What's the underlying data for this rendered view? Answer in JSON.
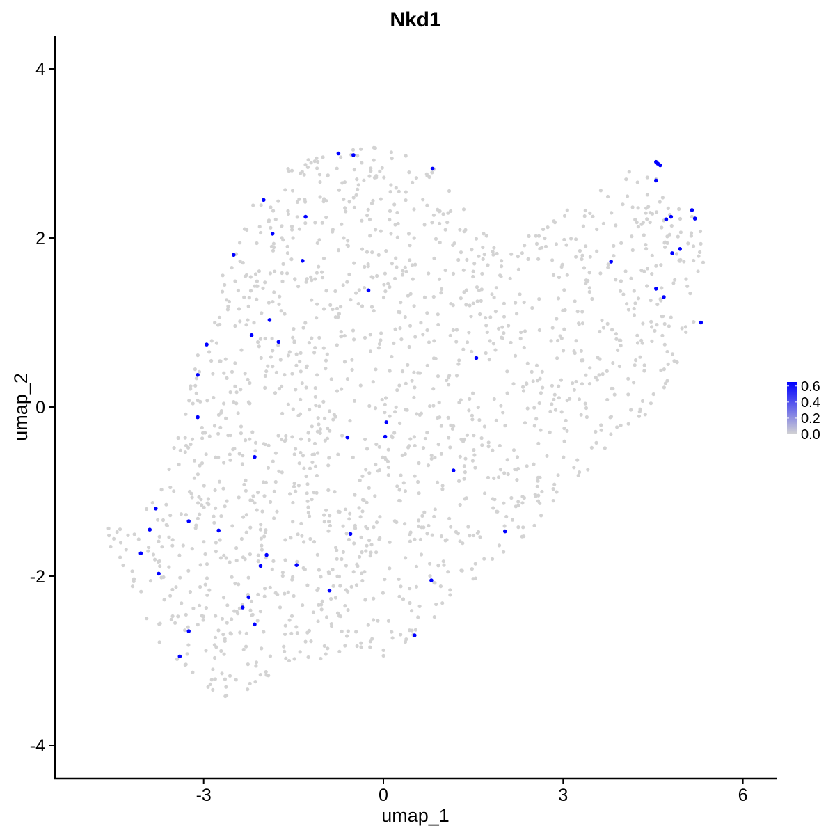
{
  "chart_data": {
    "type": "scatter",
    "title": "Nkd1",
    "xlabel": "umap_1",
    "ylabel": "umap_2",
    "xlim": [
      -5.5,
      6.5
    ],
    "ylim": [
      -4.3,
      4.4
    ],
    "x_ticks": [
      -3,
      0,
      3,
      6
    ],
    "x_tick_labels": [
      "-3",
      "0",
      "3",
      "6"
    ],
    "y_ticks": [
      -4,
      -2,
      0,
      2,
      4
    ],
    "y_tick_labels": [
      "-4",
      "-2",
      "0",
      "2",
      "4"
    ],
    "grid": false,
    "legend": {
      "placement": "right",
      "type": "colorbar",
      "min": 0.0,
      "max": 0.65,
      "ticks": [
        0.0,
        0.2,
        0.4,
        0.6
      ],
      "tick_labels": [
        "0.0",
        "0.2",
        "0.4",
        "0.6"
      ],
      "low_color": "#d3d3d3",
      "high_color": "#0000ff"
    },
    "background_color": "#d3d3d3",
    "expressed_color": "#0000ff",
    "background_region": {
      "description_points": [
        [
          -4.6,
          -1.25
        ],
        [
          -3.9,
          -1.2
        ],
        [
          -3.5,
          -0.4
        ],
        [
          -3.2,
          0.4
        ],
        [
          -2.9,
          1.2
        ],
        [
          -2.5,
          1.9
        ],
        [
          -2.1,
          2.5
        ],
        [
          -1.6,
          2.85
        ],
        [
          -0.9,
          3.05
        ],
        [
          -0.2,
          3.1
        ],
        [
          0.5,
          3.0
        ],
        [
          1.1,
          2.7
        ],
        [
          1.6,
          2.2
        ],
        [
          2.1,
          1.95
        ],
        [
          2.8,
          2.2
        ],
        [
          3.5,
          2.55
        ],
        [
          4.4,
          2.95
        ],
        [
          4.9,
          2.7
        ],
        [
          5.3,
          2.4
        ],
        [
          5.35,
          1.8
        ],
        [
          5.25,
          1.1
        ],
        [
          4.9,
          0.4
        ],
        [
          4.3,
          -0.2
        ],
        [
          3.5,
          -0.7
        ],
        [
          2.9,
          -1.1
        ],
        [
          2.4,
          -1.5
        ],
        [
          1.8,
          -1.9
        ],
        [
          1.1,
          -2.3
        ],
        [
          0.6,
          -2.75
        ],
        [
          0.0,
          -2.95
        ],
        [
          -0.9,
          -3.0
        ],
        [
          -1.6,
          -3.05
        ],
        [
          -2.1,
          -3.3
        ],
        [
          -2.6,
          -3.45
        ],
        [
          -3.2,
          -3.2
        ],
        [
          -3.7,
          -2.9
        ],
        [
          -4.1,
          -2.5
        ],
        [
          -4.4,
          -2.1
        ],
        [
          -4.7,
          -1.6
        ]
      ],
      "point_count": 1650
    },
    "highlighted_points": [
      {
        "x": -0.75,
        "y": 3.0,
        "value": 0.65
      },
      {
        "x": -0.5,
        "y": 2.98,
        "value": 0.65
      },
      {
        "x": 0.82,
        "y": 2.82,
        "value": 0.65
      },
      {
        "x": -2.0,
        "y": 2.45,
        "value": 0.65
      },
      {
        "x": -1.3,
        "y": 2.25,
        "value": 0.65
      },
      {
        "x": -1.85,
        "y": 2.05,
        "value": 0.65
      },
      {
        "x": -2.5,
        "y": 1.8,
        "value": 0.65
      },
      {
        "x": -1.35,
        "y": 1.73,
        "value": 0.65
      },
      {
        "x": -0.25,
        "y": 1.38,
        "value": 0.65
      },
      {
        "x": -1.9,
        "y": 1.03,
        "value": 0.65
      },
      {
        "x": -2.2,
        "y": 0.85,
        "value": 0.65
      },
      {
        "x": -1.75,
        "y": 0.77,
        "value": 0.65
      },
      {
        "x": -2.95,
        "y": 0.74,
        "value": 0.65
      },
      {
        "x": -3.1,
        "y": 0.38,
        "value": 0.65
      },
      {
        "x": -3.1,
        "y": -0.12,
        "value": 0.65
      },
      {
        "x": 0.05,
        "y": -0.18,
        "value": 0.65
      },
      {
        "x": 0.03,
        "y": -0.35,
        "value": 0.65
      },
      {
        "x": -0.6,
        "y": -0.36,
        "value": 0.65
      },
      {
        "x": -2.15,
        "y": -0.59,
        "value": 0.65
      },
      {
        "x": 1.17,
        "y": -0.75,
        "value": 0.65
      },
      {
        "x": 1.55,
        "y": 0.58,
        "value": 0.65
      },
      {
        "x": -3.8,
        "y": -1.2,
        "value": 0.65
      },
      {
        "x": -3.25,
        "y": -1.35,
        "value": 0.65
      },
      {
        "x": -3.9,
        "y": -1.45,
        "value": 0.65
      },
      {
        "x": -2.75,
        "y": -1.46,
        "value": 0.65
      },
      {
        "x": -0.55,
        "y": -1.5,
        "value": 0.65
      },
      {
        "x": 2.03,
        "y": -1.47,
        "value": 0.65
      },
      {
        "x": -4.05,
        "y": -1.73,
        "value": 0.65
      },
      {
        "x": -1.95,
        "y": -1.75,
        "value": 0.65
      },
      {
        "x": -1.45,
        "y": -1.87,
        "value": 0.65
      },
      {
        "x": -2.05,
        "y": -1.88,
        "value": 0.65
      },
      {
        "x": -3.75,
        "y": -1.97,
        "value": 0.65
      },
      {
        "x": 0.8,
        "y": -2.05,
        "value": 0.65
      },
      {
        "x": -0.9,
        "y": -2.17,
        "value": 0.65
      },
      {
        "x": -2.25,
        "y": -2.25,
        "value": 0.65
      },
      {
        "x": -2.35,
        "y": -2.37,
        "value": 0.65
      },
      {
        "x": -2.15,
        "y": -2.57,
        "value": 0.65
      },
      {
        "x": -3.25,
        "y": -2.65,
        "value": 0.65
      },
      {
        "x": 0.52,
        "y": -2.7,
        "value": 0.65
      },
      {
        "x": -3.4,
        "y": -2.95,
        "value": 0.65
      },
      {
        "x": 4.55,
        "y": 2.9,
        "value": 0.65
      },
      {
        "x": 4.58,
        "y": 2.88,
        "value": 0.65
      },
      {
        "x": 4.62,
        "y": 2.86,
        "value": 0.65
      },
      {
        "x": 4.55,
        "y": 2.68,
        "value": 0.65
      },
      {
        "x": 5.15,
        "y": 2.33,
        "value": 0.65
      },
      {
        "x": 5.2,
        "y": 2.23,
        "value": 0.65
      },
      {
        "x": 4.8,
        "y": 2.25,
        "value": 0.65
      },
      {
        "x": 4.72,
        "y": 2.22,
        "value": 0.65
      },
      {
        "x": 4.95,
        "y": 1.87,
        "value": 0.65
      },
      {
        "x": 4.82,
        "y": 1.82,
        "value": 0.65
      },
      {
        "x": 3.8,
        "y": 1.72,
        "value": 0.65
      },
      {
        "x": 4.55,
        "y": 1.4,
        "value": 0.65
      },
      {
        "x": 4.68,
        "y": 1.3,
        "value": 0.65
      },
      {
        "x": 5.3,
        "y": 1.0,
        "value": 0.65
      }
    ]
  }
}
